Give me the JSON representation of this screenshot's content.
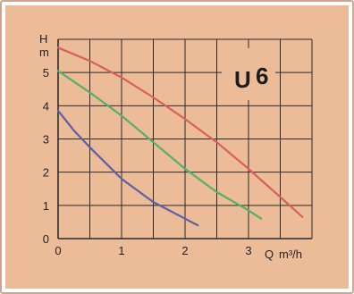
{
  "chart_data": {
    "type": "line",
    "title": "U 6",
    "title_prefix": "U",
    "title_number": "6",
    "ylabel_line1": "H",
    "ylabel_line2": "m",
    "xlabel": "Q m³/h",
    "xlabel_q": "Q",
    "xlabel_unit": "m³/h",
    "xlim": [
      0,
      4
    ],
    "ylim": [
      0,
      6
    ],
    "x_ticks": [
      "0",
      "1",
      "2",
      "3"
    ],
    "y_ticks": [
      "0",
      "1",
      "2",
      "3",
      "4",
      "5"
    ],
    "grid": true,
    "series": [
      {
        "color": "#d9605a",
        "x": [
          0,
          0.5,
          1.0,
          1.5,
          2.0,
          2.5,
          3.0,
          3.5,
          3.85
        ],
        "y": [
          5.75,
          5.35,
          4.85,
          4.25,
          3.6,
          2.9,
          2.1,
          1.25,
          0.65
        ]
      },
      {
        "color": "#52b06a",
        "x": [
          0,
          0.5,
          1.0,
          1.5,
          2.0,
          2.5,
          3.0,
          3.2
        ],
        "y": [
          5.05,
          4.4,
          3.7,
          2.9,
          2.1,
          1.4,
          0.85,
          0.6
        ]
      },
      {
        "color": "#5a5fa8",
        "x": [
          0,
          0.25,
          0.5,
          1.0,
          1.5,
          2.0,
          2.2
        ],
        "y": [
          3.85,
          3.25,
          2.75,
          1.8,
          1.1,
          0.6,
          0.4
        ]
      }
    ]
  }
}
